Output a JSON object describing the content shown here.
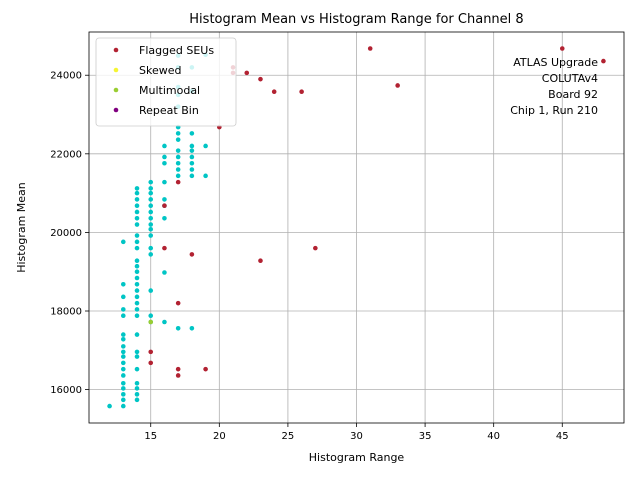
{
  "chart_data": {
    "type": "scatter",
    "title": "Histogram Mean vs Histogram Range for Channel 8",
    "xlabel": "Histogram Range",
    "ylabel": "Histogram Mean",
    "xlim": [
      10.5,
      49.5
    ],
    "ylim": [
      15150,
      25100
    ],
    "xticks": [
      15,
      20,
      25,
      30,
      35,
      40,
      45
    ],
    "yticks": [
      16000,
      18000,
      20000,
      22000,
      24000
    ],
    "grid": true,
    "legend_position": "top-left",
    "annotation": [
      "ATLAS Upgrade",
      "COLUTAv4",
      "Board 92",
      "Chip 1, Run 210"
    ],
    "series": [
      {
        "name": "",
        "color": "#00c5c5",
        "points": [
          [
            12,
            15580
          ],
          [
            13,
            15580
          ],
          [
            13,
            15740
          ],
          [
            13,
            15880
          ],
          [
            13,
            16030
          ],
          [
            13,
            16160
          ],
          [
            13,
            16360
          ],
          [
            13,
            16520
          ],
          [
            13,
            16680
          ],
          [
            13,
            16840
          ],
          [
            13,
            16960
          ],
          [
            13,
            17100
          ],
          [
            13,
            17280
          ],
          [
            13,
            17400
          ],
          [
            14,
            15740
          ],
          [
            14,
            15880
          ],
          [
            14,
            16030
          ],
          [
            14,
            16160
          ],
          [
            14,
            16520
          ],
          [
            14,
            16840
          ],
          [
            14,
            16960
          ],
          [
            14,
            17400
          ],
          [
            14,
            17880
          ],
          [
            14,
            18040
          ],
          [
            14,
            18200
          ],
          [
            14,
            18360
          ],
          [
            14,
            18520
          ],
          [
            14,
            18680
          ],
          [
            14,
            18840
          ],
          [
            14,
            19000
          ],
          [
            14,
            19140
          ],
          [
            14,
            19280
          ],
          [
            14,
            19600
          ],
          [
            14,
            19760
          ],
          [
            14,
            19920
          ],
          [
            14,
            20200
          ],
          [
            14,
            20360
          ],
          [
            14,
            20520
          ],
          [
            14,
            20680
          ],
          [
            14,
            20840
          ],
          [
            14,
            21000
          ],
          [
            14,
            21120
          ],
          [
            13,
            17880
          ],
          [
            13,
            18040
          ],
          [
            13,
            18360
          ],
          [
            13,
            18680
          ],
          [
            13,
            19760
          ],
          [
            15,
            17720
          ],
          [
            15,
            17880
          ],
          [
            15,
            18520
          ],
          [
            15,
            19440
          ],
          [
            15,
            19600
          ],
          [
            15,
            19920
          ],
          [
            15,
            20080
          ],
          [
            15,
            20200
          ],
          [
            15,
            20360
          ],
          [
            15,
            20520
          ],
          [
            15,
            20680
          ],
          [
            15,
            20840
          ],
          [
            15,
            21000
          ],
          [
            15,
            21120
          ],
          [
            15,
            21280
          ],
          [
            16,
            17720
          ],
          [
            16,
            18980
          ],
          [
            16,
            20360
          ],
          [
            16,
            20680
          ],
          [
            16,
            20840
          ],
          [
            16,
            21280
          ],
          [
            16,
            21760
          ],
          [
            16,
            21920
          ],
          [
            16,
            22200
          ],
          [
            17,
            17560
          ],
          [
            17,
            21440
          ],
          [
            17,
            21600
          ],
          [
            17,
            21760
          ],
          [
            17,
            21920
          ],
          [
            17,
            22080
          ],
          [
            17,
            22360
          ],
          [
            17,
            22520
          ],
          [
            17,
            22680
          ],
          [
            17,
            23200
          ],
          [
            17,
            23500
          ],
          [
            17,
            23700
          ],
          [
            17,
            24200
          ],
          [
            17,
            24500
          ],
          [
            18,
            17560
          ],
          [
            18,
            21440
          ],
          [
            18,
            21600
          ],
          [
            18,
            21760
          ],
          [
            18,
            21920
          ],
          [
            18,
            22080
          ],
          [
            18,
            22200
          ],
          [
            18,
            22520
          ],
          [
            18,
            23600
          ],
          [
            18,
            24200
          ],
          [
            19,
            21440
          ],
          [
            19,
            22200
          ],
          [
            19,
            24520
          ]
        ]
      },
      {
        "name": "Flagged SEUs",
        "color": "#b22232",
        "points": [
          [
            15,
            16680
          ],
          [
            15,
            16960
          ],
          [
            16,
            19600
          ],
          [
            16,
            20680
          ],
          [
            17,
            16360
          ],
          [
            17,
            16520
          ],
          [
            17,
            18200
          ],
          [
            17,
            21280
          ],
          [
            18,
            19440
          ],
          [
            19,
            16520
          ],
          [
            20,
            22680
          ],
          [
            21,
            24060
          ],
          [
            21,
            24200
          ],
          [
            22,
            24060
          ],
          [
            23,
            19280
          ],
          [
            23,
            23900
          ],
          [
            24,
            23580
          ],
          [
            26,
            23580
          ],
          [
            27,
            19600
          ],
          [
            31,
            24680
          ],
          [
            33,
            23740
          ],
          [
            45,
            24680
          ],
          [
            48,
            24360
          ]
        ]
      },
      {
        "name": "Skewed",
        "color": "#f5f534",
        "points": []
      },
      {
        "name": "Multimodal",
        "color": "#9acd32",
        "points": [
          [
            15,
            17720
          ]
        ]
      },
      {
        "name": "Repeat Bin",
        "color": "#800080",
        "points": []
      }
    ]
  }
}
